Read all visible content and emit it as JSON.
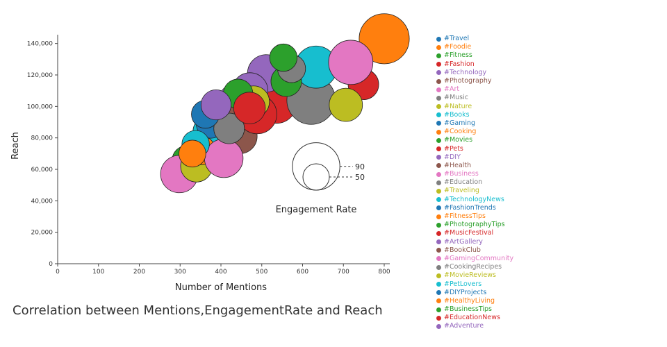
{
  "title": "Correlation between Mentions,EngagementRate and Reach",
  "chart_data": {
    "type": "scatter",
    "subtype": "bubble",
    "xlabel": "Number of Mentions",
    "ylabel": "Reach",
    "xlim": [
      0,
      800
    ],
    "ylim": [
      0,
      150000
    ],
    "x_ticks": [
      0,
      100,
      200,
      300,
      400,
      500,
      600,
      700,
      800
    ],
    "y_ticks": [
      0,
      20000,
      40000,
      60000,
      80000,
      100000,
      120000,
      140000
    ],
    "grid": false,
    "legend_position": "right",
    "size_legend": {
      "label": "Engagement Rate",
      "values": [
        90,
        50
      ]
    },
    "series": [
      {
        "name": "#Travel",
        "color": "#1f77b4",
        "x": 400,
        "y": 93000,
        "size": 63
      },
      {
        "name": "#Foodie",
        "color": "#ff7f0e",
        "x": 800,
        "y": 143000,
        "size": 95
      },
      {
        "name": "#Fitness",
        "color": "#2ca02c",
        "x": 315,
        "y": 66000,
        "size": 53
      },
      {
        "name": "#Fashion",
        "color": "#d62728",
        "x": 536,
        "y": 102000,
        "size": 76
      },
      {
        "name": "#Technology",
        "color": "#9467bd",
        "x": 511,
        "y": 121000,
        "size": 71
      },
      {
        "name": "#Photography",
        "color": "#8c564b",
        "x": 446,
        "y": 81000,
        "size": 66
      },
      {
        "name": "#Art",
        "color": "#e377c2",
        "x": 298,
        "y": 57000,
        "size": 71
      },
      {
        "name": "#Music",
        "color": "#7f7f7f",
        "x": 621,
        "y": 104000,
        "size": 92
      },
      {
        "name": "#Nature",
        "color": "#bcbd22",
        "x": 340,
        "y": 62000,
        "size": 60
      },
      {
        "name": "#Books",
        "color": "#17becf",
        "x": 633,
        "y": 125000,
        "size": 80
      },
      {
        "name": "#Gaming",
        "color": "#1f77b4",
        "x": 430,
        "y": 99000,
        "size": 60
      },
      {
        "name": "#Cooking",
        "color": "#ff7f0e",
        "x": 452,
        "y": 96000,
        "size": 55
      },
      {
        "name": "#Movies",
        "color": "#2ca02c",
        "x": 560,
        "y": 116000,
        "size": 58
      },
      {
        "name": "#Pets",
        "color": "#d62728",
        "x": 749,
        "y": 114000,
        "size": 58
      },
      {
        "name": "#DIY",
        "color": "#9467bd",
        "x": 435,
        "y": 104000,
        "size": 62
      },
      {
        "name": "#Health",
        "color": "#8c564b",
        "x": 392,
        "y": 78000,
        "size": 56
      },
      {
        "name": "#Business",
        "color": "#e377c2",
        "x": 718,
        "y": 128000,
        "size": 84
      },
      {
        "name": "#Education",
        "color": "#7f7f7f",
        "x": 573,
        "y": 124000,
        "size": 53
      },
      {
        "name": "#Traveling",
        "color": "#bcbd22",
        "x": 706,
        "y": 101000,
        "size": 63
      },
      {
        "name": "#TechnologyNews",
        "color": "#17becf",
        "x": 369,
        "y": 84000,
        "size": 58
      },
      {
        "name": "#FashionTrends",
        "color": "#1f77b4",
        "x": 375,
        "y": 89000,
        "size": 55
      },
      {
        "name": "#FitnessTips",
        "color": "#ff7f0e",
        "x": 352,
        "y": 72000,
        "size": 54
      },
      {
        "name": "#PhotographyTips",
        "color": "#2ca02c",
        "x": 553,
        "y": 131000,
        "size": 52
      },
      {
        "name": "#MusicFestival",
        "color": "#d62728",
        "x": 489,
        "y": 95000,
        "size": 74
      },
      {
        "name": "#ArtGallery",
        "color": "#9467bd",
        "x": 471,
        "y": 110000,
        "size": 68
      },
      {
        "name": "#BookClub",
        "color": "#8c564b",
        "x": 418,
        "y": 95000,
        "size": 58
      },
      {
        "name": "#GamingCommunity",
        "color": "#e377c2",
        "x": 407,
        "y": 67000,
        "size": 73
      },
      {
        "name": "#CookingRecipes",
        "color": "#7f7f7f",
        "x": 420,
        "y": 86000,
        "size": 58
      },
      {
        "name": "#MovieReviews",
        "color": "#bcbd22",
        "x": 480,
        "y": 103000,
        "size": 60
      },
      {
        "name": "#PetLovers",
        "color": "#17becf",
        "x": 338,
        "y": 76000,
        "size": 52
      },
      {
        "name": "#DIYProjects",
        "color": "#1f77b4",
        "x": 362,
        "y": 95000,
        "size": 53
      },
      {
        "name": "#HealthyLiving",
        "color": "#ff7f0e",
        "x": 330,
        "y": 70000,
        "size": 51
      },
      {
        "name": "#BusinessTips",
        "color": "#2ca02c",
        "x": 442,
        "y": 108000,
        "size": 56
      },
      {
        "name": "#EducationNews",
        "color": "#d62728",
        "x": 470,
        "y": 99000,
        "size": 60
      },
      {
        "name": "#Adventure",
        "color": "#9467bd",
        "x": 388,
        "y": 101000,
        "size": 57
      }
    ]
  }
}
